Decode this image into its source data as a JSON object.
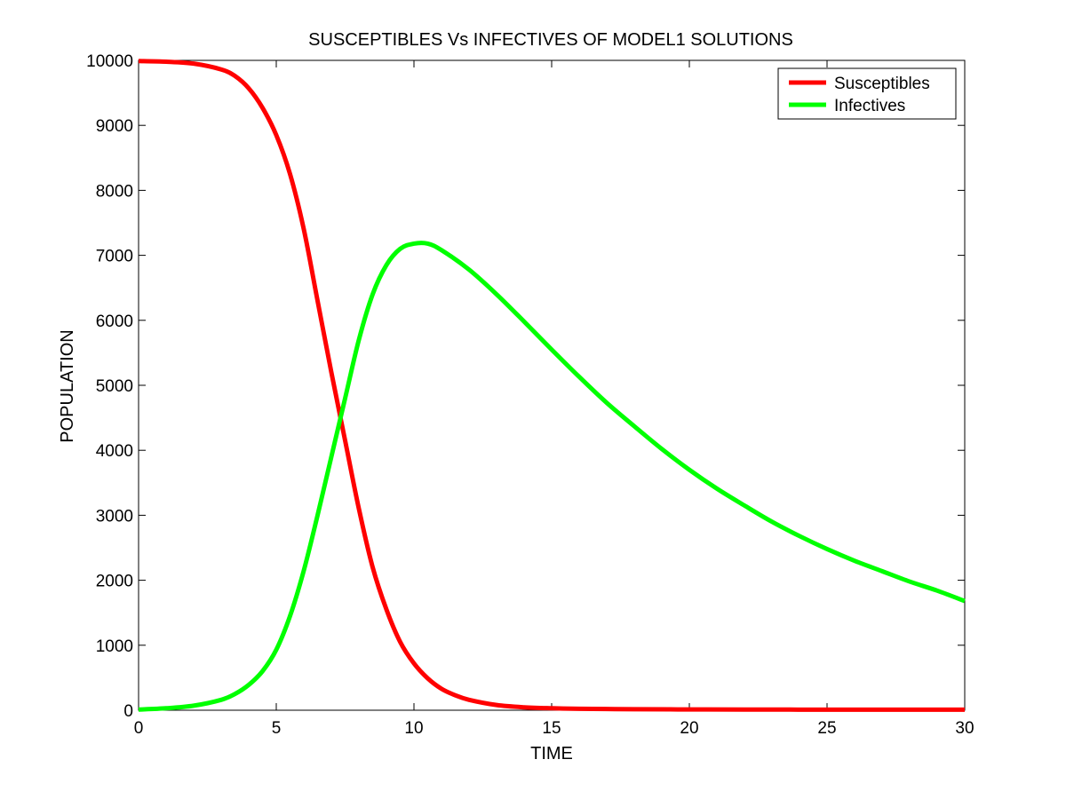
{
  "chart_data": {
    "type": "line",
    "title": "SUSCEPTIBLES Vs INFECTIVES OF MODEL1 SOLUTIONS",
    "xlabel": "TIME",
    "ylabel": "POPULATION",
    "xlim": [
      0,
      30
    ],
    "ylim": [
      0,
      10000
    ],
    "xticks": [
      "0",
      "5",
      "10",
      "15",
      "20",
      "25",
      "30"
    ],
    "yticks": [
      "0",
      "1000",
      "2000",
      "3000",
      "4000",
      "5000",
      "6000",
      "7000",
      "8000",
      "9000",
      "10000"
    ],
    "grid": false,
    "legend_position": "top-right",
    "series": [
      {
        "name": "Susceptibles",
        "color": "#ff0000",
        "x": [
          0,
          1,
          2,
          3,
          3.5,
          4,
          4.5,
          5,
          5.5,
          6,
          6.5,
          7,
          7.5,
          8,
          8.5,
          9,
          9.5,
          10,
          10.5,
          11,
          11.5,
          12,
          13,
          14,
          15,
          16,
          17,
          18,
          20,
          22,
          25,
          28,
          30
        ],
        "y": [
          9990,
          9980,
          9950,
          9860,
          9760,
          9570,
          9270,
          8850,
          8250,
          7400,
          6300,
          5200,
          4150,
          3100,
          2200,
          1550,
          1050,
          720,
          490,
          330,
          230,
          160,
          80,
          45,
          30,
          22,
          18,
          15,
          12,
          10,
          9,
          8,
          8
        ]
      },
      {
        "name": "Infectives",
        "color": "#00ff00",
        "x": [
          0,
          1,
          2,
          3,
          3.5,
          4,
          4.5,
          5,
          5.5,
          6,
          6.5,
          7,
          7.5,
          8,
          8.5,
          9,
          9.5,
          10,
          10.5,
          11,
          12,
          13,
          14,
          15,
          16,
          17,
          18,
          19,
          20,
          21,
          22,
          23,
          24,
          25,
          26,
          27,
          28,
          29,
          30
        ],
        "y": [
          10,
          30,
          70,
          160,
          250,
          390,
          600,
          930,
          1450,
          2150,
          3000,
          3900,
          4800,
          5700,
          6400,
          6850,
          7100,
          7180,
          7180,
          7080,
          6780,
          6400,
          5980,
          5550,
          5130,
          4730,
          4370,
          4020,
          3700,
          3410,
          3150,
          2900,
          2680,
          2480,
          2300,
          2140,
          1980,
          1840,
          1680
        ]
      }
    ]
  }
}
